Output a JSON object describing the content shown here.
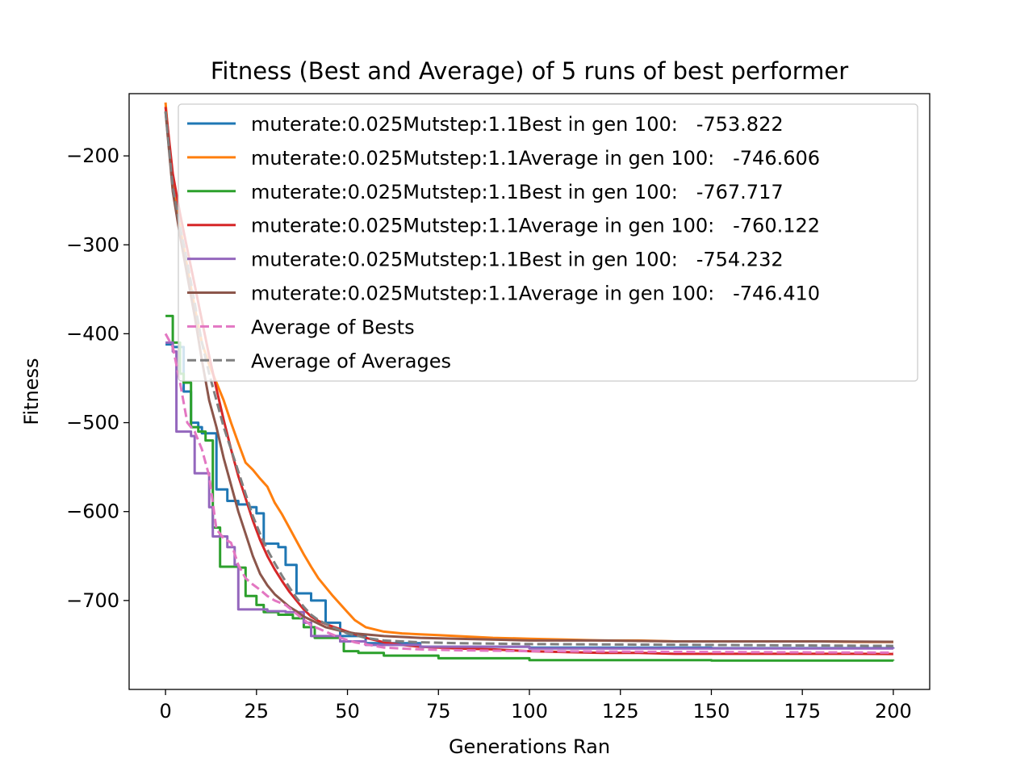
{
  "chart_data": {
    "type": "line",
    "title": "Fitness (Best and Average) of 5 runs of best performer",
    "xlabel": "Generations Ran",
    "ylabel": "Fitness",
    "xlim": [
      -10,
      210
    ],
    "ylim": [
      -800,
      -130
    ],
    "xticks": [
      0,
      25,
      50,
      75,
      100,
      125,
      150,
      175,
      200
    ],
    "yticks": [
      -200,
      -300,
      -400,
      -500,
      -600,
      -700
    ],
    "ytick_labels": [
      "−200",
      "−300",
      "−400",
      "−500",
      "−600",
      "−700"
    ],
    "grid": false,
    "legend_position": "upper right",
    "series": [
      {
        "name": "muterate:0.025Mutstep:1.1Best in gen 100:   -753.822",
        "color": "#1f77b4",
        "dash": "solid",
        "step": true,
        "points": [
          [
            0,
            -412
          ],
          [
            2,
            -415
          ],
          [
            4,
            -415
          ],
          [
            5,
            -465
          ],
          [
            7,
            -500
          ],
          [
            9,
            -505
          ],
          [
            10,
            -512
          ],
          [
            12,
            -512
          ],
          [
            14,
            -575
          ],
          [
            17,
            -588
          ],
          [
            20,
            -592
          ],
          [
            23,
            -595
          ],
          [
            25,
            -602
          ],
          [
            27,
            -636
          ],
          [
            31,
            -640
          ],
          [
            33,
            -660
          ],
          [
            36,
            -692
          ],
          [
            40,
            -700
          ],
          [
            44,
            -725
          ],
          [
            48,
            -740
          ],
          [
            55,
            -748
          ],
          [
            70,
            -752
          ],
          [
            100,
            -753
          ],
          [
            150,
            -753.6
          ],
          [
            200,
            -753.822
          ]
        ]
      },
      {
        "name": "muterate:0.025Mutstep:1.1Average in gen 100:   -746.606",
        "color": "#ff7f0e",
        "dash": "solid",
        "step": false,
        "points": [
          [
            0,
            -140
          ],
          [
            2,
            -235
          ],
          [
            4,
            -280
          ],
          [
            6,
            -325
          ],
          [
            8,
            -370
          ],
          [
            10,
            -410
          ],
          [
            12,
            -435
          ],
          [
            14,
            -455
          ],
          [
            16,
            -475
          ],
          [
            18,
            -500
          ],
          [
            20,
            -523
          ],
          [
            22,
            -545
          ],
          [
            24,
            -553
          ],
          [
            26,
            -563
          ],
          [
            28,
            -572
          ],
          [
            30,
            -590
          ],
          [
            32,
            -603
          ],
          [
            34,
            -618
          ],
          [
            36,
            -633
          ],
          [
            38,
            -648
          ],
          [
            40,
            -662
          ],
          [
            42,
            -675
          ],
          [
            44,
            -685
          ],
          [
            46,
            -695
          ],
          [
            48,
            -704
          ],
          [
            50,
            -713
          ],
          [
            52,
            -722
          ],
          [
            55,
            -730
          ],
          [
            60,
            -735
          ],
          [
            65,
            -737
          ],
          [
            70,
            -738
          ],
          [
            75,
            -739
          ],
          [
            80,
            -740
          ],
          [
            85,
            -741
          ],
          [
            90,
            -742
          ],
          [
            100,
            -743
          ],
          [
            110,
            -744
          ],
          [
            120,
            -745
          ],
          [
            130,
            -745
          ],
          [
            140,
            -746
          ],
          [
            150,
            -746
          ],
          [
            160,
            -746
          ],
          [
            170,
            -746
          ],
          [
            180,
            -746
          ],
          [
            190,
            -746.5
          ],
          [
            200,
            -746.606
          ]
        ]
      },
      {
        "name": "muterate:0.025Mutstep:1.1Best in gen 100:   -767.717",
        "color": "#2ca02c",
        "dash": "solid",
        "step": true,
        "points": [
          [
            0,
            -380
          ],
          [
            2,
            -410
          ],
          [
            4,
            -445
          ],
          [
            5,
            -455
          ],
          [
            7,
            -505
          ],
          [
            9,
            -510
          ],
          [
            11,
            -520
          ],
          [
            13,
            -618
          ],
          [
            15,
            -662
          ],
          [
            19,
            -662
          ],
          [
            20,
            -663
          ],
          [
            22,
            -695
          ],
          [
            25,
            -705
          ],
          [
            27,
            -713
          ],
          [
            31,
            -716
          ],
          [
            35,
            -720
          ],
          [
            38,
            -730
          ],
          [
            41,
            -742
          ],
          [
            48,
            -746
          ],
          [
            49,
            -757
          ],
          [
            53,
            -759
          ],
          [
            60,
            -762
          ],
          [
            75,
            -765
          ],
          [
            100,
            -767
          ],
          [
            150,
            -767.5
          ],
          [
            200,
            -767.717
          ]
        ]
      },
      {
        "name": "muterate:0.025Mutstep:1.1Average in gen 100:   -760.122",
        "color": "#d62728",
        "dash": "solid",
        "step": false,
        "points": [
          [
            0,
            -145
          ],
          [
            2,
            -220
          ],
          [
            4,
            -265
          ],
          [
            6,
            -305
          ],
          [
            8,
            -345
          ],
          [
            10,
            -385
          ],
          [
            12,
            -425
          ],
          [
            14,
            -462
          ],
          [
            16,
            -497
          ],
          [
            18,
            -530
          ],
          [
            20,
            -560
          ],
          [
            22,
            -585
          ],
          [
            24,
            -610
          ],
          [
            26,
            -632
          ],
          [
            28,
            -650
          ],
          [
            30,
            -665
          ],
          [
            32,
            -678
          ],
          [
            34,
            -690
          ],
          [
            36,
            -700
          ],
          [
            38,
            -710
          ],
          [
            40,
            -718
          ],
          [
            42,
            -723
          ],
          [
            45,
            -728
          ],
          [
            50,
            -735
          ],
          [
            55,
            -742
          ],
          [
            60,
            -747
          ],
          [
            65,
            -750
          ],
          [
            70,
            -752
          ],
          [
            80,
            -754
          ],
          [
            90,
            -755
          ],
          [
            100,
            -757
          ],
          [
            110,
            -758
          ],
          [
            120,
            -759
          ],
          [
            130,
            -759
          ],
          [
            140,
            -760
          ],
          [
            150,
            -760
          ],
          [
            160,
            -760
          ],
          [
            170,
            -760
          ],
          [
            180,
            -760
          ],
          [
            190,
            -760
          ],
          [
            200,
            -760.122
          ]
        ]
      },
      {
        "name": "muterate:0.025Mutstep:1.1Best in gen 100:   -754.232",
        "color": "#9467bd",
        "dash": "solid",
        "step": true,
        "points": [
          [
            0,
            -410
          ],
          [
            2,
            -420
          ],
          [
            3,
            -510
          ],
          [
            7,
            -515
          ],
          [
            8,
            -557
          ],
          [
            11,
            -557
          ],
          [
            12,
            -595
          ],
          [
            13,
            -628
          ],
          [
            17,
            -640
          ],
          [
            19,
            -660
          ],
          [
            20,
            -710
          ],
          [
            26,
            -710
          ],
          [
            28,
            -712
          ],
          [
            33,
            -713
          ],
          [
            38,
            -725
          ],
          [
            40,
            -740
          ],
          [
            48,
            -746
          ],
          [
            55,
            -750
          ],
          [
            70,
            -752
          ],
          [
            100,
            -754
          ],
          [
            200,
            -754.232
          ]
        ]
      },
      {
        "name": "muterate:0.025Mutstep:1.1Average in gen 100:   -746.410",
        "color": "#8c564b",
        "dash": "solid",
        "step": false,
        "points": [
          [
            0,
            -150
          ],
          [
            2,
            -240
          ],
          [
            4,
            -290
          ],
          [
            6,
            -335
          ],
          [
            8,
            -380
          ],
          [
            10,
            -430
          ],
          [
            12,
            -475
          ],
          [
            14,
            -505
          ],
          [
            16,
            -540
          ],
          [
            18,
            -570
          ],
          [
            20,
            -600
          ],
          [
            22,
            -625
          ],
          [
            24,
            -650
          ],
          [
            26,
            -670
          ],
          [
            28,
            -683
          ],
          [
            30,
            -693
          ],
          [
            32,
            -700
          ],
          [
            34,
            -707
          ],
          [
            36,
            -712
          ],
          [
            38,
            -718
          ],
          [
            40,
            -722
          ],
          [
            44,
            -730
          ],
          [
            48,
            -734
          ],
          [
            52,
            -737
          ],
          [
            60,
            -740
          ],
          [
            70,
            -742
          ],
          [
            80,
            -743
          ],
          [
            90,
            -744
          ],
          [
            100,
            -745
          ],
          [
            120,
            -745
          ],
          [
            140,
            -746
          ],
          [
            160,
            -746
          ],
          [
            180,
            -746
          ],
          [
            200,
            -746.41
          ]
        ]
      },
      {
        "name": "Average of Bests",
        "color": "#e377c2",
        "dash": "dashed",
        "step": false,
        "points": [
          [
            0,
            -400
          ],
          [
            2,
            -415
          ],
          [
            4,
            -455
          ],
          [
            6,
            -500
          ],
          [
            8,
            -510
          ],
          [
            10,
            -530
          ],
          [
            12,
            -560
          ],
          [
            14,
            -620
          ],
          [
            16,
            -630
          ],
          [
            18,
            -635
          ],
          [
            20,
            -660
          ],
          [
            22,
            -675
          ],
          [
            24,
            -682
          ],
          [
            26,
            -688
          ],
          [
            28,
            -695
          ],
          [
            30,
            -700
          ],
          [
            33,
            -705
          ],
          [
            36,
            -715
          ],
          [
            40,
            -728
          ],
          [
            44,
            -735
          ],
          [
            48,
            -742
          ],
          [
            52,
            -747
          ],
          [
            56,
            -750
          ],
          [
            60,
            -753
          ],
          [
            70,
            -755
          ],
          [
            80,
            -756
          ],
          [
            100,
            -757
          ],
          [
            150,
            -758
          ],
          [
            200,
            -758.59
          ]
        ]
      },
      {
        "name": "Average of Averages",
        "color": "#7f7f7f",
        "dash": "dashed",
        "step": false,
        "points": [
          [
            0,
            -150
          ],
          [
            2,
            -235
          ],
          [
            4,
            -280
          ],
          [
            6,
            -320
          ],
          [
            8,
            -365
          ],
          [
            10,
            -410
          ],
          [
            12,
            -445
          ],
          [
            14,
            -475
          ],
          [
            16,
            -505
          ],
          [
            18,
            -530
          ],
          [
            20,
            -555
          ],
          [
            22,
            -580
          ],
          [
            24,
            -605
          ],
          [
            26,
            -625
          ],
          [
            28,
            -643
          ],
          [
            30,
            -658
          ],
          [
            32,
            -672
          ],
          [
            34,
            -685
          ],
          [
            36,
            -697
          ],
          [
            38,
            -707
          ],
          [
            40,
            -716
          ],
          [
            42,
            -722
          ],
          [
            46,
            -730
          ],
          [
            50,
            -737
          ],
          [
            55,
            -742
          ],
          [
            60,
            -745
          ],
          [
            70,
            -747
          ],
          [
            80,
            -748
          ],
          [
            100,
            -749
          ],
          [
            150,
            -750
          ],
          [
            200,
            -751.05
          ]
        ]
      }
    ]
  }
}
